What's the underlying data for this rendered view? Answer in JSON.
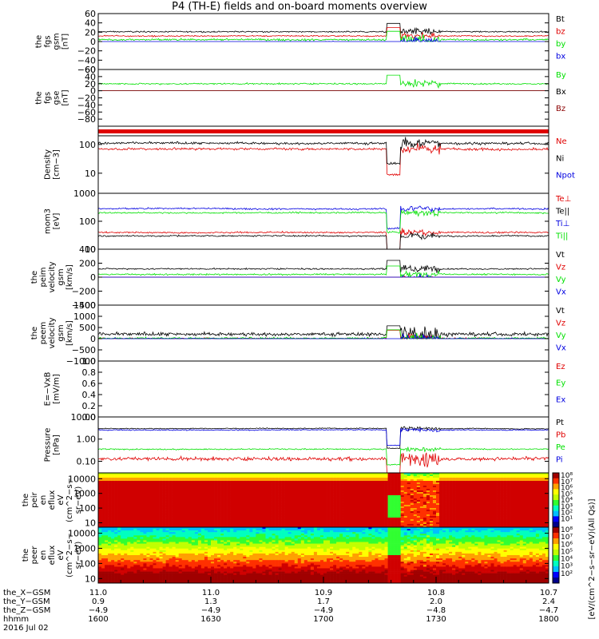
{
  "title": "P4 (TH-E) fields and on-board moments overview",
  "colors": {
    "black": "#000000",
    "red": "#e00000",
    "green": "#00e000",
    "blue": "#0000e0",
    "dark_red": "#8b0000",
    "frame": "#000000"
  },
  "chart_data": [
    {
      "type": "line",
      "panel": "fgs_gsm",
      "ylabel": [
        "the",
        "fgs",
        "gsm",
        "[nT]"
      ],
      "ylim": [
        -60,
        60
      ],
      "ticks": [
        "60",
        "40",
        "20",
        "0",
        "−20",
        "−40",
        "−60"
      ],
      "tick_values": [
        60,
        40,
        20,
        0,
        -20,
        -40,
        -60
      ],
      "series": [
        {
          "name": "Bt",
          "color": "#000000",
          "baseline": 21,
          "noise": 2
        },
        {
          "name": "bz",
          "color": "#e00000",
          "baseline": 12,
          "noise": 2
        },
        {
          "name": "by",
          "color": "#00e000",
          "baseline": 4,
          "noise": 3
        },
        {
          "name": "bx",
          "color": "#0000e0",
          "baseline": -2,
          "noise": 3
        }
      ]
    },
    {
      "type": "line",
      "panel": "fgs_gse",
      "ylabel": [
        "the",
        "fgs",
        "gse",
        "[nT]"
      ],
      "ylim": [
        -100,
        60
      ],
      "ticks": [
        "60",
        "40",
        "20",
        "0",
        "−20",
        "−40",
        "−60",
        "−80"
      ],
      "tick_values": [
        60,
        40,
        20,
        0,
        -20,
        -40,
        -60,
        -80
      ],
      "series": [
        {
          "name": "By",
          "color": "#00e000",
          "baseline": 20,
          "noise": 3
        },
        {
          "name": "Bx",
          "color": "#000000",
          "baseline": -10,
          "noise": 3
        },
        {
          "name": "Bz",
          "color": "#8b0000",
          "baseline": -42,
          "noise": 4
        }
      ]
    },
    {
      "type": "bar",
      "panel": "quality_flag",
      "color": "#e00000"
    },
    {
      "type": "line",
      "panel": "density",
      "ylabel": [
        "Density",
        "[cm−3]"
      ],
      "scale": "log",
      "ylim": [
        2,
        200
      ],
      "ticks": [
        "100",
        "10"
      ],
      "tick_values": [
        100,
        10
      ],
      "series": [
        {
          "name": "Ne",
          "color": "#e00000",
          "baseline": 70,
          "noise": 0.06
        },
        {
          "name": "Ni",
          "color": "#000000",
          "baseline": 110,
          "noise": 0.06
        },
        {
          "name": "Npot",
          "color": "#0000e0",
          "baseline": null,
          "noise": 0
        }
      ]
    },
    {
      "type": "line",
      "panel": "temperature",
      "ylabel": [
        "mom3",
        "[eV]"
      ],
      "scale": "log",
      "ylim": [
        10,
        1000
      ],
      "ticks": [
        "1000",
        "100",
        "10"
      ],
      "tick_values": [
        1000,
        100,
        10
      ],
      "series": [
        {
          "name": "Te⊥",
          "color": "#e00000",
          "baseline": 40,
          "noise": 0.04
        },
        {
          "name": "Te||",
          "color": "#000000",
          "baseline": 30,
          "noise": 0.04
        },
        {
          "name": "Ti⊥",
          "color": "#0000e0",
          "baseline": 280,
          "noise": 0.04
        },
        {
          "name": "Ti||",
          "color": "#00e000",
          "baseline": 200,
          "noise": 0.04
        }
      ]
    },
    {
      "type": "line",
      "panel": "peim_velocity",
      "ylabel": [
        "the",
        "peim",
        "velocity",
        "gsm",
        "[km/s]"
      ],
      "ylim": [
        -400,
        400
      ],
      "ticks": [
        "400",
        "200",
        "0",
        "−200",
        "−400"
      ],
      "tick_values": [
        400,
        200,
        0,
        -200,
        -400
      ],
      "series": [
        {
          "name": "Vt",
          "color": "#000000",
          "baseline": 120,
          "noise": 15
        },
        {
          "name": "Vz",
          "color": "#e00000",
          "baseline": -30,
          "noise": 15
        },
        {
          "name": "Vy",
          "color": "#00e000",
          "baseline": 40,
          "noise": 15
        },
        {
          "name": "Vx",
          "color": "#0000e0",
          "baseline": -20,
          "noise": 15
        }
      ]
    },
    {
      "type": "line",
      "panel": "peem_velocity",
      "ylabel": [
        "the",
        "peem",
        "velocity",
        "gsm",
        "[km/s]"
      ],
      "ylim": [
        -1000,
        1500
      ],
      "ticks": [
        "1500",
        "1000",
        "500",
        "0",
        "−500",
        "−1000"
      ],
      "tick_values": [
        1500,
        1000,
        500,
        0,
        -500,
        -1000
      ],
      "series": [
        {
          "name": "Vt",
          "color": "#000000",
          "baseline": 200,
          "noise": 120
        },
        {
          "name": "Vz",
          "color": "#e00000",
          "baseline": 0,
          "noise": 60
        },
        {
          "name": "Vy",
          "color": "#00e000",
          "baseline": 20,
          "noise": 60
        },
        {
          "name": "Vx",
          "color": "#0000e0",
          "baseline": -40,
          "noise": 90
        }
      ]
    },
    {
      "type": "line",
      "panel": "efield",
      "ylabel": [
        "E=−VxB",
        "[mV/m]"
      ],
      "ylim": [
        0,
        1.0
      ],
      "ticks": [
        "1.0",
        "0.8",
        "0.6",
        "0.4",
        "0.2",
        "0.0"
      ],
      "tick_values": [
        1.0,
        0.8,
        0.6,
        0.4,
        0.2,
        0.0
      ],
      "series": [
        {
          "name": "Ez",
          "color": "#e00000",
          "baseline": null,
          "noise": 0
        },
        {
          "name": "Ey",
          "color": "#00e000",
          "baseline": null,
          "noise": 0
        },
        {
          "name": "Ex",
          "color": "#0000e0",
          "baseline": null,
          "noise": 0
        }
      ]
    },
    {
      "type": "line",
      "panel": "pressure",
      "ylabel": [
        "Pressure",
        "[nPa]"
      ],
      "scale": "log",
      "ylim": [
        0.03,
        10
      ],
      "ticks": [
        "10.00",
        "1.00",
        "0.10"
      ],
      "tick_values": [
        10,
        1,
        0.1
      ],
      "series": [
        {
          "name": "Pt",
          "color": "#000000",
          "baseline": 3.0,
          "noise": 0.03
        },
        {
          "name": "Pb",
          "color": "#e00000",
          "baseline": 0.13,
          "noise": 0.12
        },
        {
          "name": "Pe",
          "color": "#00e000",
          "baseline": 0.35,
          "noise": 0.04
        },
        {
          "name": "Pi",
          "color": "#0000e0",
          "baseline": 2.6,
          "noise": 0.03
        }
      ]
    },
    {
      "type": "heatmap",
      "panel": "peir_en_eflux",
      "ylabel": [
        "the",
        "peir",
        "en",
        "eflux",
        "eV",
        "(cm^2−s−",
        "sr−eV)"
      ],
      "scale": "log",
      "ylim": [
        5,
        25000
      ],
      "ticks": [
        "10000",
        "1000",
        "100",
        "10"
      ],
      "tick_values": [
        10000,
        1000,
        100,
        10
      ]
    },
    {
      "type": "heatmap",
      "panel": "peer_en_eflux",
      "ylabel": [
        "the",
        "peer",
        "en",
        "eflux",
        "eV",
        "(cm^2−s−",
        "sr−eV)"
      ],
      "scale": "log",
      "ylim": [
        5,
        25000
      ],
      "ticks": [
        "10000",
        "1000",
        "100",
        "10"
      ],
      "tick_values": [
        10000,
        1000,
        100,
        10
      ]
    }
  ],
  "colorbar": {
    "label": "[eV/(cm^2−s−sr−eV)(All Qs)]",
    "top_ticks": [
      "10⁸",
      "10⁷",
      "10⁶",
      "10⁵",
      "10⁴",
      "10³",
      "10²",
      "10¹"
    ],
    "bottom_ticks": [
      "10⁸",
      "10⁷",
      "10⁶",
      "10⁵",
      "10⁴",
      "10³",
      "10²"
    ]
  },
  "x_axis": {
    "row_labels": [
      "the_X−GSM",
      "the_Y−GSM",
      "the_Z−GSM",
      "hhmm",
      "2016 Jul 02"
    ],
    "rows": [
      [
        "11.0",
        "11.0",
        "10.9",
        "10.8",
        "10.7"
      ],
      [
        "0.9",
        "1.3",
        "1.7",
        "2.0",
        "2.4"
      ],
      [
        "−4.9",
        "−4.9",
        "−4.9",
        "−4.8",
        "−4.7"
      ],
      [
        "1600",
        "1630",
        "1700",
        "1730",
        "1800"
      ]
    ],
    "range": [
      1600,
      1800
    ]
  }
}
